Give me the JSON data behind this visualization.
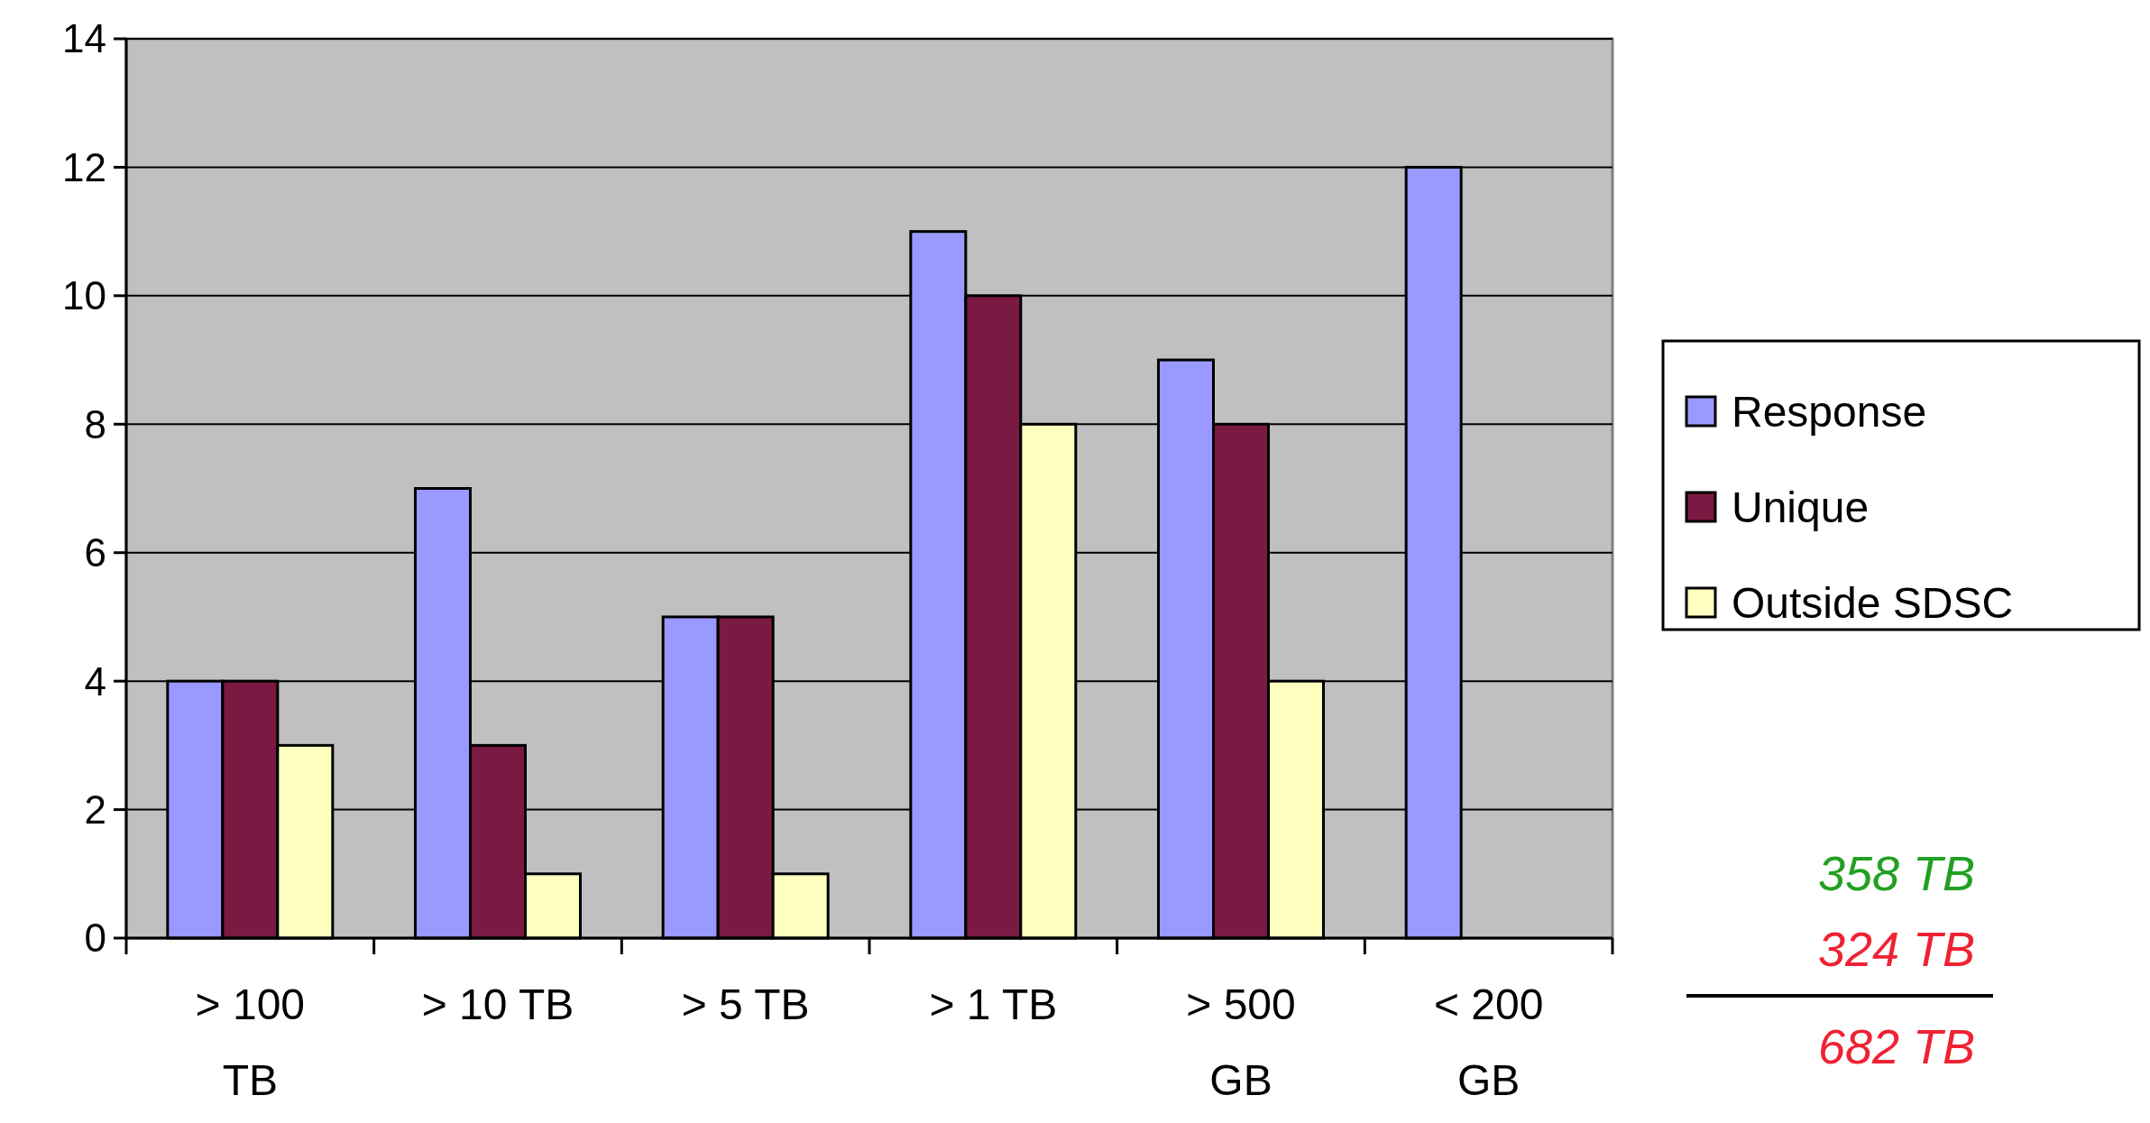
{
  "chart_data": {
    "type": "bar",
    "categories": [
      "> 100 TB",
      "> 10 TB",
      "> 5 TB",
      "> 1 TB",
      "> 500 GB",
      "< 200 GB"
    ],
    "series": [
      {
        "name": "Response",
        "color": "#9999ff",
        "values": [
          4,
          7,
          5,
          11,
          9,
          12
        ]
      },
      {
        "name": "Unique",
        "color": "#7a1a42",
        "values": [
          4,
          3,
          5,
          10,
          8,
          null
        ]
      },
      {
        "name": "Outside SDSC",
        "color": "#ffffc0",
        "values": [
          3,
          1,
          1,
          8,
          4,
          null
        ]
      }
    ],
    "ylim": [
      0,
      14
    ],
    "yticks": [
      0,
      2,
      4,
      6,
      8,
      10,
      12,
      14
    ],
    "grid": "y",
    "legend": "right",
    "annotations": [
      "358 TB",
      "324 TB",
      "682 TB"
    ]
  }
}
